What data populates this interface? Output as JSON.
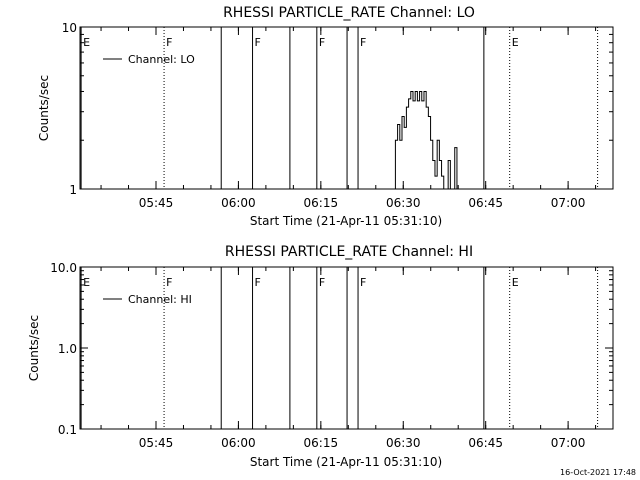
{
  "footer_timestamp": "16-Oct-2021 17:48",
  "chart_data": [
    {
      "type": "line",
      "title": "RHESSI PARTICLE_RATE Channel: LO",
      "xlabel": "Start Time (21-Apr-11 05:31:10)",
      "ylabel": "Counts/sec",
      "y_scale": "log",
      "ylim": [
        1,
        10
      ],
      "y_ticks": [
        {
          "value": 1,
          "label": "1"
        },
        {
          "value": 10,
          "label": "10"
        }
      ],
      "x_unit": "minutes since 05:31:10",
      "xlim": [
        0,
        97
      ],
      "x_ticks": [
        {
          "value": 13.83,
          "label": "05:45"
        },
        {
          "value": 28.83,
          "label": "06:00"
        },
        {
          "value": 43.83,
          "label": "06:15"
        },
        {
          "value": 58.83,
          "label": "06:30"
        },
        {
          "value": 73.83,
          "label": "06:45"
        },
        {
          "value": 88.83,
          "label": "07:00"
        }
      ],
      "legend": {
        "label": "Channel: LO",
        "position": "top-left"
      },
      "grid": false,
      "event_markers": [
        {
          "x": 0.2,
          "label": "E",
          "style": "solid"
        },
        {
          "x": 15.3,
          "label": "F",
          "style": "dotted"
        },
        {
          "x": 25.7,
          "label": "",
          "style": "solid"
        },
        {
          "x": 31.4,
          "label": "F",
          "style": "solid"
        },
        {
          "x": 38.2,
          "label": "",
          "style": "solid"
        },
        {
          "x": 43.1,
          "label": "F",
          "style": "solid"
        },
        {
          "x": 48.6,
          "label": "",
          "style": "solid"
        },
        {
          "x": 50.6,
          "label": "F",
          "style": "solid"
        },
        {
          "x": 73.5,
          "label": "",
          "style": "solid"
        },
        {
          "x": 78.2,
          "label": "E",
          "style": "dotted"
        },
        {
          "x": 94.2,
          "label": "",
          "style": "dotted"
        }
      ],
      "series": [
        {
          "name": "Channel: LO",
          "x": [
            57.0,
            57.4,
            57.8,
            58.2,
            58.6,
            59.0,
            59.4,
            59.8,
            60.2,
            60.6,
            61.0,
            61.4,
            61.8,
            62.2,
            62.6,
            63.0,
            63.4,
            63.8,
            64.2,
            64.6,
            65.0,
            65.4,
            65.8,
            66.2,
            66.6,
            67.0,
            67.4,
            67.8,
            68.2,
            68.6,
            69.0
          ],
          "values": [
            1.0,
            2.0,
            2.5,
            2.0,
            2.8,
            2.4,
            3.2,
            3.6,
            4.0,
            3.5,
            4.0,
            3.5,
            4.0,
            3.5,
            4.0,
            3.2,
            2.8,
            2.0,
            1.5,
            1.2,
            2.0,
            1.5,
            1.2,
            1.0,
            1.0,
            1.5,
            1.0,
            1.0,
            1.8,
            1.0,
            1.0
          ]
        }
      ]
    },
    {
      "type": "line",
      "title": "RHESSI PARTICLE_RATE Channel: HI",
      "xlabel": "Start Time (21-Apr-11 05:31:10)",
      "ylabel": "Counts/sec",
      "y_scale": "log",
      "ylim": [
        0.1,
        10
      ],
      "y_ticks": [
        {
          "value": 0.1,
          "label": "0.1"
        },
        {
          "value": 1,
          "label": "1.0"
        },
        {
          "value": 10,
          "label": "10.0"
        }
      ],
      "x_unit": "minutes since 05:31:10",
      "xlim": [
        0,
        97
      ],
      "x_ticks": [
        {
          "value": 13.83,
          "label": "05:45"
        },
        {
          "value": 28.83,
          "label": "06:00"
        },
        {
          "value": 43.83,
          "label": "06:15"
        },
        {
          "value": 58.83,
          "label": "06:30"
        },
        {
          "value": 73.83,
          "label": "06:45"
        },
        {
          "value": 88.83,
          "label": "07:00"
        }
      ],
      "legend": {
        "label": "Channel: HI",
        "position": "top-left"
      },
      "grid": false,
      "event_markers": [
        {
          "x": 0.2,
          "label": "E",
          "style": "solid"
        },
        {
          "x": 15.3,
          "label": "F",
          "style": "dotted"
        },
        {
          "x": 25.7,
          "label": "",
          "style": "solid"
        },
        {
          "x": 31.4,
          "label": "F",
          "style": "solid"
        },
        {
          "x": 38.2,
          "label": "",
          "style": "solid"
        },
        {
          "x": 43.1,
          "label": "F",
          "style": "solid"
        },
        {
          "x": 48.6,
          "label": "",
          "style": "solid"
        },
        {
          "x": 50.6,
          "label": "F",
          "style": "solid"
        },
        {
          "x": 73.5,
          "label": "",
          "style": "solid"
        },
        {
          "x": 78.2,
          "label": "E",
          "style": "dotted"
        },
        {
          "x": 94.2,
          "label": "",
          "style": "dotted"
        }
      ],
      "series": [
        {
          "name": "Channel: HI",
          "x": [],
          "values": []
        }
      ]
    }
  ]
}
